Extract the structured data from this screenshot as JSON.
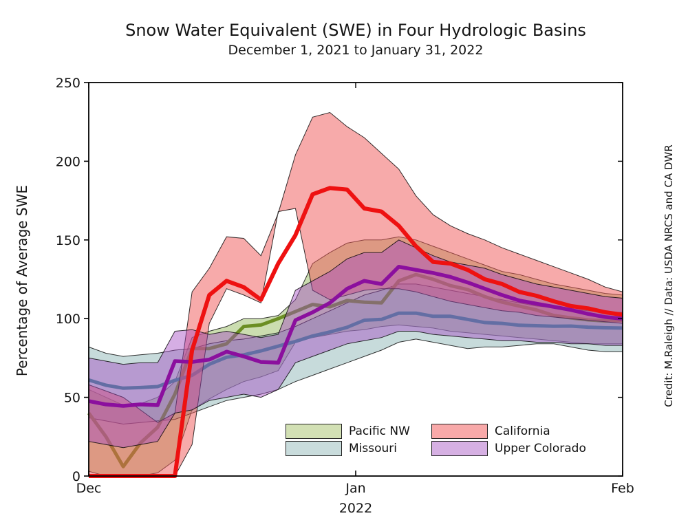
{
  "title": "Snow Water Equivalent (SWE) in Four Hydrologic Basins",
  "subtitle": "December 1, 2021 to January 31, 2022",
  "ylabel": "Percentage of Average SWE",
  "year_label": "2022",
  "credit": "Credit: M.Raleigh // Data: USDA NRCS and CA DWR",
  "chart_data": {
    "type": "line",
    "title": "Snow Water Equivalent (SWE) in Four Hydrologic Basins",
    "subtitle": "December 1, 2021 to January 31, 2022",
    "xlabel": "2022",
    "ylabel": "Percentage of Average SWE",
    "ylim": [
      0,
      250
    ],
    "y_ticks": [
      0,
      50,
      100,
      150,
      200,
      250
    ],
    "x_ticks": [
      {
        "day": 0,
        "label": "Dec"
      },
      {
        "day": 31,
        "label": "Jan"
      },
      {
        "day": 62,
        "label": "Feb"
      }
    ],
    "grid": false,
    "legend_position": "lower-center, two columns, no frame",
    "band_meaning": "shaded band = station range around thick median line, thin black band outlines",
    "x_unit": "days since Dec 1, 2021 (Dec 1 = 0, Jan 1 = 31, Feb 1 = 62)",
    "days": [
      0,
      2,
      4,
      6,
      8,
      10,
      12,
      14,
      16,
      18,
      20,
      22,
      24,
      26,
      28,
      30,
      32,
      34,
      36,
      38,
      40,
      42,
      44,
      46,
      48,
      50,
      52,
      54,
      56,
      58,
      60,
      62
    ],
    "series": [
      {
        "name": "Pacific NW",
        "line_color": "#6b8e23",
        "fill_color": "rgba(140,180,80,0.45)",
        "legend_color": "#d2e0b4",
        "line_width": 5,
        "median": [
          40,
          25,
          6,
          21,
          31,
          52,
          81,
          81,
          84,
          95,
          96,
          100,
          104.5,
          109,
          107.5,
          111.5,
          110.5,
          110,
          124,
          128,
          125,
          121,
          118.5,
          114,
          110.5,
          108,
          105.5,
          102,
          100.5,
          99.2,
          98.5,
          99
        ],
        "lower": [
          3,
          0,
          0,
          0,
          2,
          10,
          42,
          49,
          55,
          60,
          63,
          67,
          85,
          88,
          90,
          92,
          93,
          95,
          96,
          95,
          94,
          92,
          91,
          90,
          89,
          88,
          87,
          86,
          85,
          84,
          84,
          84
        ],
        "upper": [
          55,
          50,
          45,
          46,
          50,
          60,
          88,
          92,
          95,
          100,
          100,
          102,
          112,
          135,
          142,
          148,
          150,
          150,
          152,
          150,
          146,
          142,
          138,
          134,
          130,
          128,
          125,
          122,
          120,
          118,
          116,
          115
        ]
      },
      {
        "name": "Missouri",
        "line_color": "#2e8b8b",
        "fill_color": "rgba(130,175,175,0.45)",
        "legend_color": "#c9dcdc",
        "line_width": 5,
        "median": [
          61,
          57.7,
          55.8,
          56.2,
          56.8,
          60.8,
          64,
          71,
          75.5,
          77,
          79.5,
          82.5,
          85.5,
          89,
          91.5,
          94.5,
          99,
          99.5,
          103.5,
          103.5,
          101.5,
          101.5,
          99.5,
          97.5,
          97,
          95.8,
          95.5,
          95.2,
          95.3,
          94.6,
          94.2,
          94
        ],
        "lower": [
          37,
          35,
          33,
          34,
          35,
          36,
          40,
          44,
          48,
          50,
          52,
          55,
          60,
          64,
          68,
          72,
          76,
          80,
          85,
          87,
          85,
          83,
          81,
          82,
          82,
          83,
          84,
          84,
          82,
          80,
          79,
          79
        ],
        "upper": [
          82,
          78,
          76,
          77,
          78,
          80,
          81,
          84,
          86,
          87,
          89,
          91,
          95,
          100,
          105,
          110,
          115,
          118,
          122,
          122,
          120,
          118,
          116,
          114,
          112,
          110,
          108,
          107,
          106,
          105,
          104,
          104
        ]
      },
      {
        "name": "California",
        "line_color": "#ee1111",
        "fill_color": "rgba(240,85,85,0.5)",
        "legend_color": "#f8a9a9",
        "line_width": 6,
        "median": [
          0,
          0,
          0,
          0,
          0,
          0,
          80,
          115,
          124,
          120,
          112,
          135,
          153,
          179,
          183,
          182,
          170,
          168,
          159,
          146,
          136,
          135,
          131,
          125,
          122,
          117,
          114.5,
          111,
          108,
          106.5,
          104,
          102.5
        ],
        "lower": [
          0,
          0,
          0,
          0,
          0,
          0,
          20,
          97,
          119,
          115,
          110,
          168,
          170,
          118,
          112,
          115,
          118,
          119,
          119,
          117,
          114,
          111,
          109,
          107,
          105,
          104,
          102,
          101,
          100,
          99,
          98,
          97
        ],
        "upper": [
          58,
          54,
          50,
          42,
          34,
          40,
          117,
          132,
          152,
          151,
          140,
          167,
          204,
          228,
          231,
          222,
          215,
          205,
          195,
          178,
          166,
          159,
          154,
          150,
          145,
          141,
          137,
          133,
          129,
          125,
          120,
          117
        ]
      },
      {
        "name": "Upper Colorado",
        "line_color": "#8b0f9e",
        "fill_color": "rgba(165,75,195,0.45)",
        "legend_color": "#d6b0e3",
        "line_width": 5.5,
        "median": [
          47.6,
          45.5,
          44.6,
          45.5,
          45,
          73,
          72.5,
          74,
          79,
          76,
          72.5,
          72,
          99,
          104,
          110,
          119,
          124,
          122,
          133,
          131,
          129,
          126.5,
          123,
          119,
          115,
          111.5,
          109.5,
          107.5,
          105.5,
          103,
          101,
          100
        ],
        "lower": [
          22,
          20,
          18,
          20,
          22,
          40,
          42,
          48,
          50,
          52,
          50,
          55,
          72,
          76,
          80,
          84,
          86,
          88,
          92,
          92,
          90,
          89,
          88,
          87,
          86,
          86,
          85,
          85,
          84,
          84,
          83,
          83
        ],
        "upper": [
          75,
          73,
          71,
          72,
          72,
          92,
          93,
          90,
          92,
          90,
          88,
          90,
          118,
          124,
          130,
          138,
          142,
          142,
          150,
          145,
          140,
          136,
          134,
          132,
          128,
          125,
          122,
          120,
          118,
          116,
          114,
          113
        ]
      }
    ],
    "legend_entries": [
      "Pacific NW",
      "Missouri",
      "California",
      "Upper Colorado"
    ]
  }
}
